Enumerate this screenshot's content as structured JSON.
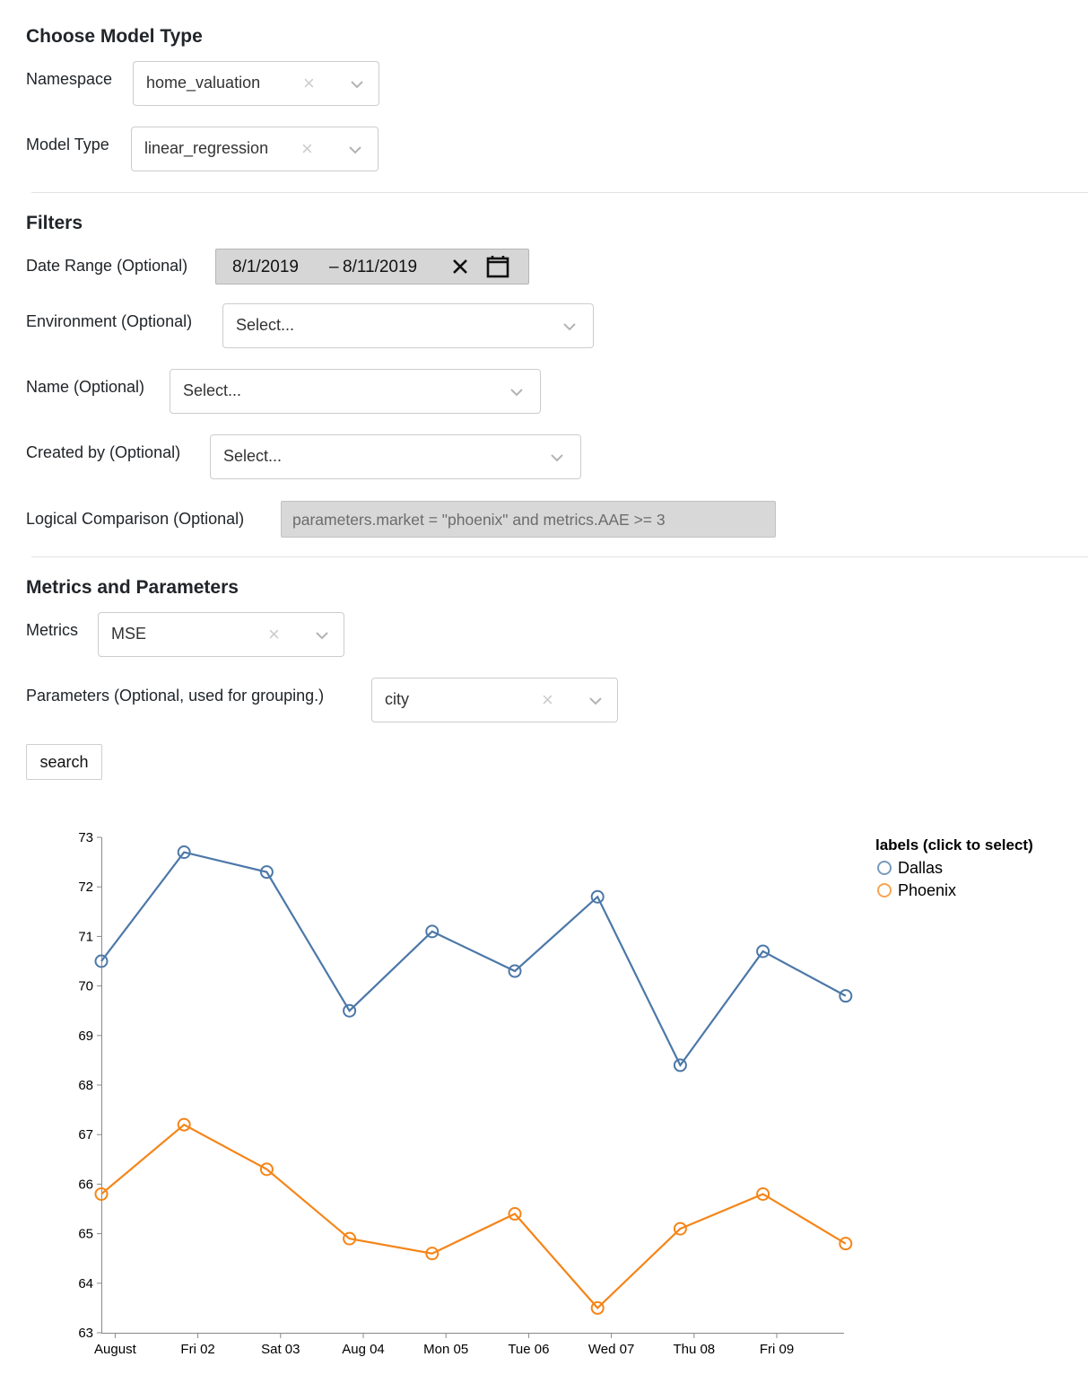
{
  "model_section": {
    "heading": "Choose Model Type",
    "namespace": {
      "label": "Namespace",
      "value": "home_valuation"
    },
    "model_type": {
      "label": "Model Type",
      "value": "linear_regression"
    }
  },
  "filters": {
    "heading": "Filters",
    "date_range": {
      "label": "Date Range (Optional)",
      "start": "8/1/2019",
      "separator": "–",
      "end": "8/11/2019"
    },
    "environment": {
      "label": "Environment (Optional)",
      "value": "Select..."
    },
    "name": {
      "label": "Name (Optional)",
      "value": "Select..."
    },
    "created_by": {
      "label": "Created by (Optional)",
      "value": "Select..."
    },
    "logical_comparison": {
      "label": "Logical Comparison (Optional)",
      "placeholder": "parameters.market = \"phoenix\" and metrics.AAE >= 3"
    }
  },
  "metrics_section": {
    "heading": "Metrics and Parameters",
    "metrics": {
      "label": "Metrics",
      "value": "MSE"
    },
    "parameters": {
      "label": "Parameters (Optional, used for grouping.)",
      "value": "city"
    },
    "search_label": "search"
  },
  "icons": {
    "clear": "×",
    "date_clear": "✕"
  },
  "colors": {
    "dallas": "#4c78a8",
    "phoenix": "#f58518"
  },
  "chart_data": {
    "type": "line",
    "x": [
      "2019-08-01",
      "2019-08-02",
      "2019-08-03",
      "2019-08-04",
      "2019-08-05",
      "2019-08-06",
      "2019-08-07",
      "2019-08-08",
      "2019-08-09",
      "2019-08-10"
    ],
    "x_tick_labels": [
      "August",
      "Fri 02",
      "Sat 03",
      "Aug 04",
      "Mon 05",
      "Tue 06",
      "Wed 07",
      "Thu 08",
      "Fri 09"
    ],
    "y_ticks": [
      "63",
      "64",
      "65",
      "66",
      "67",
      "68",
      "69",
      "70",
      "71",
      "72",
      "73"
    ],
    "ylim": [
      63,
      73
    ],
    "legend_title": "labels (click to select)",
    "legend_position": "top-right",
    "grid": false,
    "series": [
      {
        "name": "Dallas",
        "color": "#4c78a8",
        "values": [
          70.5,
          72.7,
          72.3,
          69.5,
          71.1,
          70.3,
          71.8,
          68.4,
          70.7,
          69.8
        ]
      },
      {
        "name": "Phoenix",
        "color": "#f58518",
        "values": [
          65.8,
          67.2,
          66.3,
          64.9,
          64.6,
          65.4,
          63.5,
          65.1,
          65.8,
          64.8
        ]
      }
    ]
  }
}
